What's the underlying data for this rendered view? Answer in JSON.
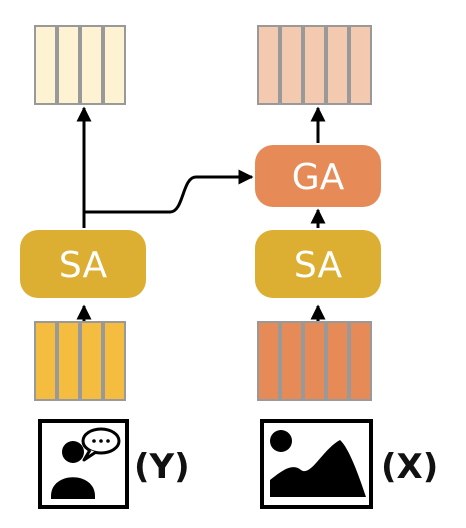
{
  "blocks": {
    "left_sa": "SA",
    "right_sa": "SA",
    "right_ga": "GA"
  },
  "labels": {
    "left_input": "(Y)",
    "right_input": "(X)"
  },
  "icons": {
    "left_input_icon": "person-speech-icon",
    "right_input_icon": "image-landscape-icon"
  },
  "colors": {
    "left_output_cells": "#fdf3d2",
    "left_input_cells": "#f4bd3f",
    "sa_block": "#dcae31",
    "right_output_cells": "#f3c9b0",
    "right_input_cells": "#e68b58",
    "ga_block": "#e68b58",
    "cell_border": "#999999",
    "arrow": "#000000"
  }
}
